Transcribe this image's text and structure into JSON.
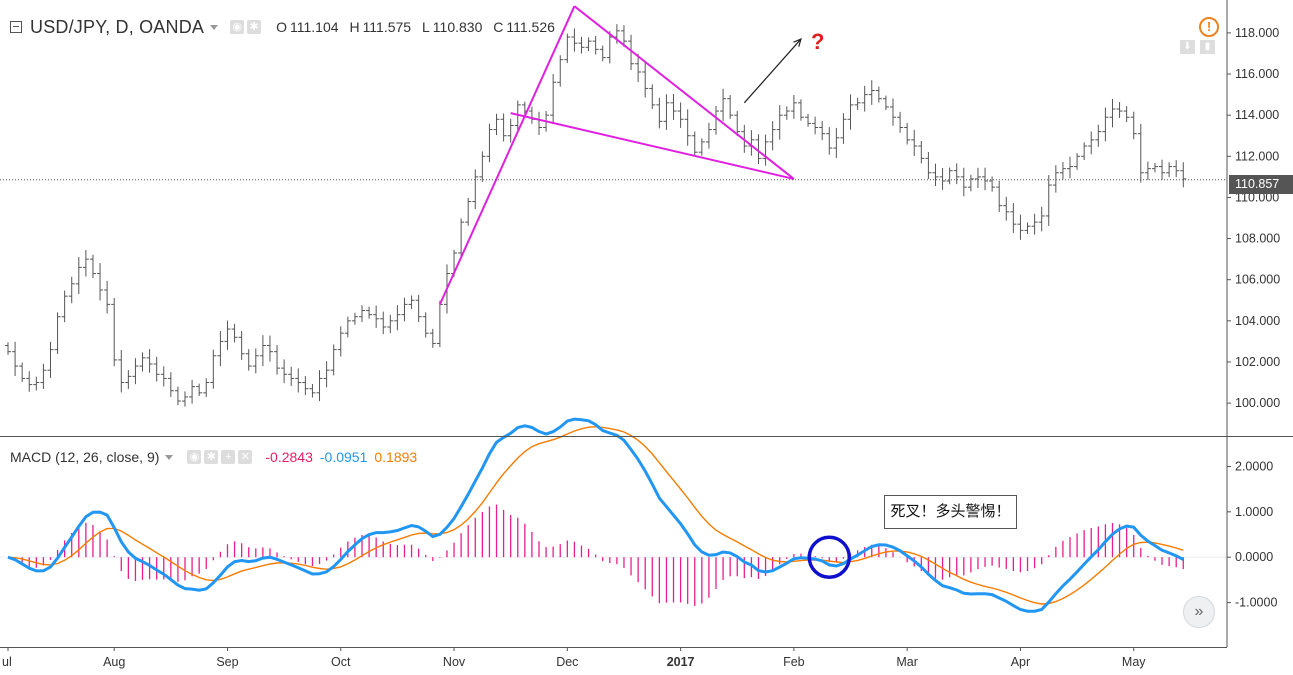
{
  "header": {
    "symbol": "USD/JPY, D, OANDA",
    "ohlc": {
      "o_label": "O",
      "o": "111.104",
      "h_label": "H",
      "h": "111.575",
      "l_label": "L",
      "l": "110.830",
      "c_label": "C",
      "c": "111.526"
    }
  },
  "macd_header": {
    "label": "MACD (12, 26, close, 9)",
    "v1": "-0.2843",
    "v2": "-0.0951",
    "v3": "0.1893"
  },
  "colors": {
    "hist": "#e91e8c",
    "macd": "#2196f3",
    "signal": "#f57c00",
    "pattern": "#e020e0",
    "circle": "#1010cc",
    "red": "#e02020",
    "candle": "#555555"
  },
  "price_tag": "110.857",
  "question_mark": "?",
  "annotation": "死叉！多头警惕！",
  "icons": {
    "alert": "alert-icon",
    "scroll": "scroll-forward-icon"
  },
  "chart_data": [
    {
      "type": "ohlc",
      "title": "USD/JPY, D, OANDA",
      "x_labels": [
        "ul",
        "Aug",
        "Sep",
        "Oct",
        "Nov",
        "Dec",
        "2017",
        "Feb",
        "Mar",
        "Apr",
        "May"
      ],
      "x_label_index": [
        0,
        15,
        31,
        47,
        63,
        79,
        95,
        111,
        127,
        143,
        159
      ],
      "y_ticks": [
        100,
        102,
        104,
        106,
        108,
        110,
        112,
        114,
        116,
        118
      ],
      "y_tick_labels": [
        "100.000",
        "102.000",
        "104.000",
        "106.000",
        "108.000",
        "110.000",
        "112.000",
        "114.000",
        "116.000",
        "118.000"
      ],
      "ylim": [
        98.4,
        119.6
      ],
      "last_price": 110.857,
      "closes": [
        102.5,
        101.8,
        101.2,
        100.9,
        101.0,
        101.6,
        102.6,
        104.2,
        105.2,
        105.8,
        106.6,
        107.0,
        106.3,
        105.5,
        104.8,
        102.1,
        101.0,
        101.3,
        101.8,
        102.2,
        101.9,
        101.4,
        101.2,
        100.6,
        100.1,
        100.3,
        100.8,
        100.5,
        101.0,
        102.3,
        103.0,
        103.6,
        103.2,
        102.4,
        101.8,
        102.3,
        102.8,
        102.5,
        101.7,
        101.4,
        101.2,
        101.0,
        100.7,
        100.5,
        101.2,
        101.6,
        102.6,
        103.4,
        104.0,
        104.2,
        104.5,
        104.3,
        104.1,
        103.7,
        104.0,
        104.3,
        104.8,
        105.0,
        104.2,
        103.4,
        102.9,
        104.8,
        106.3,
        107.3,
        108.8,
        109.8,
        111.0,
        112.0,
        113.3,
        113.8,
        113.0,
        113.5,
        114.5,
        114.2,
        113.8,
        113.4,
        114.0,
        115.6,
        116.7,
        117.8,
        117.5,
        117.3,
        117.6,
        117.2,
        116.8,
        117.8,
        118.1,
        117.6,
        116.5,
        116.1,
        115.3,
        114.5,
        113.7,
        114.6,
        114.2,
        113.8,
        113.0,
        112.2,
        112.7,
        113.3,
        114.2,
        114.8,
        114.0,
        113.2,
        112.5,
        112.8,
        111.9,
        112.7,
        113.3,
        114.0,
        114.2,
        114.6,
        113.9,
        113.6,
        113.4,
        113.1,
        112.4,
        112.9,
        113.8,
        114.5,
        114.6,
        115.0,
        115.2,
        114.8,
        114.4,
        113.9,
        113.4,
        112.8,
        112.5,
        111.9,
        111.2,
        111.0,
        110.8,
        111.3,
        111.0,
        110.5,
        110.9,
        111.0,
        110.8,
        110.5,
        109.6,
        109.3,
        108.7,
        108.4,
        108.6,
        108.8,
        109.1,
        110.6,
        111.2,
        111.4,
        111.5,
        112.0,
        112.5,
        112.8,
        113.2,
        113.9,
        114.3,
        114.2,
        113.9,
        113.1,
        111.2,
        111.4,
        111.5,
        111.2,
        111.5,
        111.3,
        110.9
      ],
      "pattern_lines": [
        {
          "from": [
            61,
            104.8
          ],
          "to": [
            80,
            119.3
          ]
        },
        {
          "from": [
            80,
            119.3
          ],
          "to": [
            111,
            110.9
          ]
        },
        {
          "from": [
            71,
            114.1
          ],
          "to": [
            111,
            110.9
          ]
        }
      ],
      "arrow": {
        "from": [
          104,
          114.6
        ],
        "to": [
          112,
          117.7
        ]
      }
    },
    {
      "type": "line",
      "title": "MACD (12, 26, close, 9)",
      "series_names": [
        "MACD",
        "Signal",
        "Histogram"
      ],
      "y_ticks": [
        -1,
        0,
        1,
        2
      ],
      "y_tick_labels": [
        "-1.0000",
        "0.0000",
        "1.0000",
        "2.0000"
      ],
      "ylim": [
        -1.98,
        2.65
      ],
      "circle_at": [
        116,
        0.0
      ]
    }
  ]
}
